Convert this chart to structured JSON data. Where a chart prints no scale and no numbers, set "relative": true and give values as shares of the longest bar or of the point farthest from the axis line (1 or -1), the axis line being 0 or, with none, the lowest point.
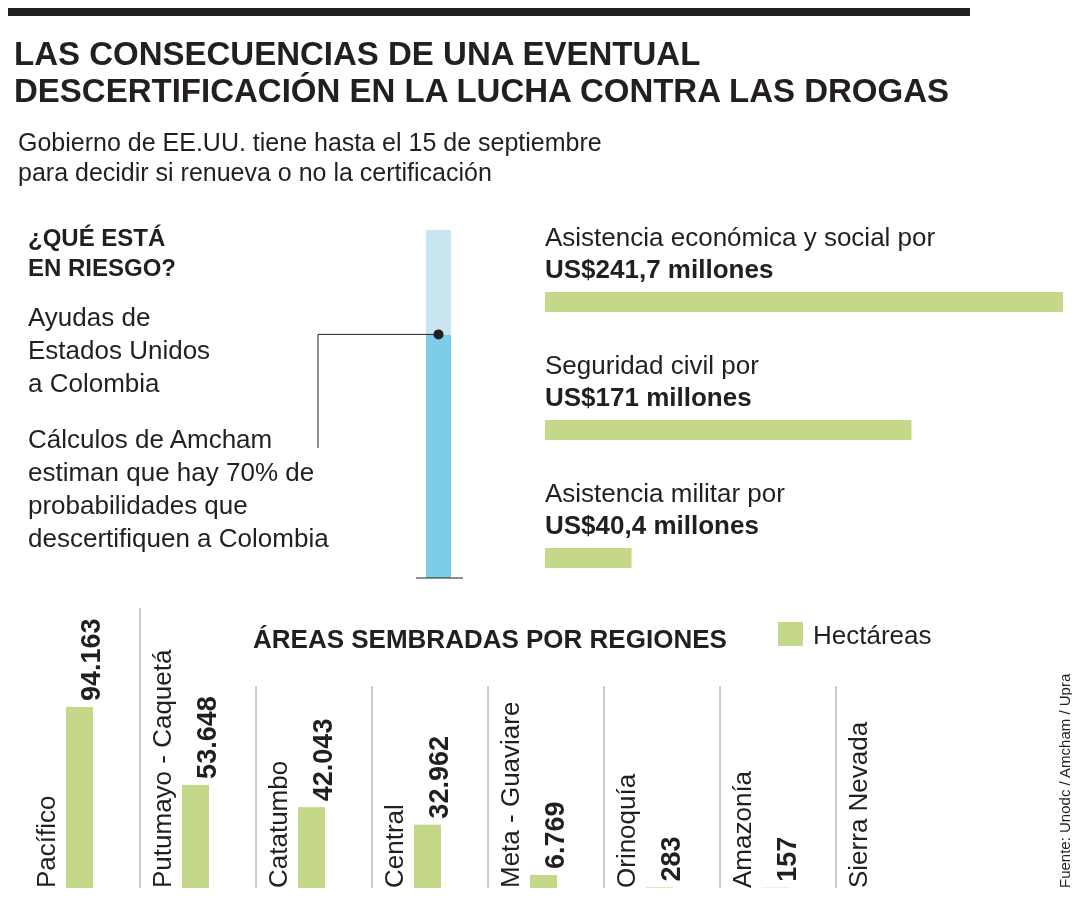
{
  "chart_data": [
    {
      "type": "bar",
      "title": "LAS CONSECUENCIAS DE UNA EVENTUAL\nDESCERTIFICACIÓN EN LA LUCHA CONTRA LAS DROGAS",
      "subtitle": "Gobierno de EE.UU. tiene hasta el 15 de septiembre\npara decidir si renueva o no la certificación",
      "categories": [
        null
      ],
      "stacked": true,
      "relative": true,
      "series": [
        {
          "color": "#7ecde6",
          "values": [
            0.7
          ]
        },
        {
          "color": "#c9e6f0",
          "values": [
            0.3
          ]
        }
      ],
      "annotations": [
        "¿QUÉ ESTÁ\nEN RIESGO?",
        "Ayudas de\nEstados Unidos\na Colombia",
        "Cálculos de Amcham\nestiman que hay 70% de\nprobabilidades que\ndescertifiquen a Colombia"
      ]
    },
    {
      "type": "bar",
      "orientation": "horizontal",
      "categories": [
        "Asistencia económica y social por",
        "Seguridad civil por",
        "Asistencia militar por"
      ],
      "values": [
        241.7,
        171,
        40.4
      ],
      "color": "#c5d88a",
      "value_labels": [
        "US$241,7 millones",
        "US$171 millones",
        "US$40,4 millones"
      ]
    },
    {
      "type": "bar",
      "title": "ÁREAS SEMBRADAS POR REGIONES",
      "categories": [
        "Pacífico",
        "Putumayo - Caquetá",
        "Catatumbo",
        "Central",
        "Meta - Guaviare",
        "Orinoquía",
        "Amazonía",
        "Sierra Nevada"
      ],
      "legend": "top right",
      "series": [
        {
          "name": "Hectáreas",
          "color": "#c5d88a",
          "values": [
            94163,
            53648,
            42043,
            32962,
            6769,
            283,
            157,
            null
          ],
          "value_labels": [
            "94.163",
            "53.648",
            "42.043",
            "32.962",
            "6.769",
            "283",
            "157",
            null
          ]
        }
      ],
      "annotations": [
        "Fuente: Unodc / Amcham / Upra"
      ]
    }
  ]
}
